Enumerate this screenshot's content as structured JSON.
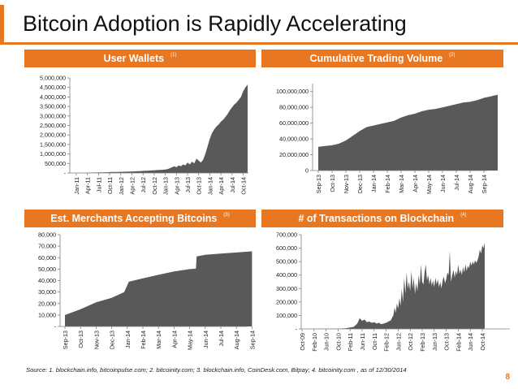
{
  "slide": {
    "title": "Bitcoin Adoption is Rapidly Accelerating",
    "source": "Source:  1. blockchain.info, bitcoinpulse.com;  2. bitcoinity.com;  3. blockchain.info, CoinDesk.com, Bitpay;  4. bitcoinity.com , as of 12/30/2014",
    "page_number": "8",
    "accent_color": "#e87722",
    "fill_color": "#595959"
  },
  "chart_data": [
    {
      "id": "wallets",
      "type": "area",
      "title": "User Wallets",
      "footnote": "(1)",
      "x": [
        "Jan-11",
        "Apr-11",
        "Jul-11",
        "Oct-11",
        "Jan-12",
        "Apr-12",
        "Jul-12",
        "Oct-12",
        "Jan-13",
        "Apr-13",
        "Jul-13",
        "Oct-13",
        "Jan-14",
        "Apr-14",
        "Jul-14",
        "Oct-14"
      ],
      "y": [
        10000,
        20000,
        30000,
        40000,
        50000,
        60000,
        70000,
        80000,
        150000,
        300000,
        450000,
        750000,
        2000000,
        2700000,
        3500000,
        4500000
      ],
      "profile": [
        [
          0,
          0
        ],
        [
          0.3,
          5000
        ],
        [
          0.6,
          10000
        ],
        [
          0.9,
          12000
        ],
        [
          1.2,
          15000
        ],
        [
          1.5,
          20000
        ],
        [
          1.8,
          25000
        ],
        [
          2.1,
          30000
        ],
        [
          2.4,
          35000
        ],
        [
          2.7,
          40000
        ],
        [
          3.0,
          45000
        ],
        [
          3.3,
          50000
        ],
        [
          3.6,
          55000
        ],
        [
          3.9,
          60000
        ],
        [
          4.2,
          65000
        ],
        [
          4.5,
          70000
        ],
        [
          4.8,
          75000
        ],
        [
          5.1,
          80000
        ],
        [
          5.4,
          90000
        ],
        [
          5.7,
          100000
        ],
        [
          6.0,
          110000
        ],
        [
          6.3,
          120000
        ],
        [
          6.6,
          130000
        ],
        [
          6.9,
          140000
        ],
        [
          7.2,
          150000
        ],
        [
          7.5,
          160000
        ],
        [
          7.8,
          170000
        ],
        [
          8.0,
          180000
        ],
        [
          8.2,
          200000
        ],
        [
          8.4,
          250000
        ],
        [
          8.6,
          300000
        ],
        [
          8.8,
          350000
        ],
        [
          9.0,
          300000
        ],
        [
          9.2,
          400000
        ],
        [
          9.4,
          350000
        ],
        [
          9.6,
          450000
        ],
        [
          9.8,
          400000
        ],
        [
          10.0,
          550000
        ],
        [
          10.2,
          450000
        ],
        [
          10.4,
          600000
        ],
        [
          10.6,
          500000
        ],
        [
          10.8,
          750000
        ],
        [
          11.0,
          650000
        ],
        [
          11.2,
          550000
        ],
        [
          11.4,
          700000
        ],
        [
          11.6,
          1000000
        ],
        [
          11.8,
          1400000
        ],
        [
          12.0,
          1800000
        ],
        [
          12.2,
          2100000
        ],
        [
          12.4,
          2300000
        ],
        [
          12.6,
          2450000
        ],
        [
          12.8,
          2550000
        ],
        [
          13.0,
          2700000
        ],
        [
          13.2,
          2800000
        ],
        [
          13.4,
          2950000
        ],
        [
          13.6,
          3100000
        ],
        [
          13.8,
          3300000
        ],
        [
          14.0,
          3450000
        ],
        [
          14.2,
          3600000
        ],
        [
          14.4,
          3700000
        ],
        [
          14.6,
          3850000
        ],
        [
          14.8,
          4000000
        ],
        [
          15.0,
          4300000
        ],
        [
          15.2,
          4500000
        ],
        [
          15.4,
          4650000
        ]
      ],
      "yticks": [
        "-",
        "500,000",
        "1,000,000",
        "1,500,000",
        "2,000,000",
        "2,500,000",
        "3,000,000",
        "3,500,000",
        "4,000,000",
        "4,500,000",
        "5,000,000"
      ],
      "ylim": [
        0,
        5000000
      ]
    },
    {
      "id": "volume",
      "type": "area",
      "title": "Cumulative Trading Volume",
      "footnote": "(2)",
      "x": [
        "Sep-13",
        "Oct-13",
        "Nov-13",
        "Dec-13",
        "Jan-14",
        "Feb-14",
        "Mar-14",
        "Apr-14",
        "May-14",
        "Jun-14",
        "Jul-14",
        "Aug-14",
        "Sep-14"
      ],
      "profile": [
        [
          0,
          30000000
        ],
        [
          0.5,
          31000000
        ],
        [
          1,
          32000000
        ],
        [
          1.5,
          34000000
        ],
        [
          2,
          38000000
        ],
        [
          2.5,
          44000000
        ],
        [
          3,
          50000000
        ],
        [
          3.5,
          55000000
        ],
        [
          4,
          57000000
        ],
        [
          4.5,
          59000000
        ],
        [
          5,
          61000000
        ],
        [
          5.5,
          63000000
        ],
        [
          6,
          67000000
        ],
        [
          6.5,
          70000000
        ],
        [
          7,
          72000000
        ],
        [
          7.5,
          75000000
        ],
        [
          8,
          77000000
        ],
        [
          8.5,
          78000000
        ],
        [
          9,
          80000000
        ],
        [
          9.5,
          82000000
        ],
        [
          10,
          84000000
        ],
        [
          10.5,
          86000000
        ],
        [
          11,
          87000000
        ],
        [
          11.5,
          89000000
        ],
        [
          12,
          92000000
        ],
        [
          12.5,
          94000000
        ],
        [
          13,
          96000000
        ]
      ],
      "yticks": [
        "0",
        "20,000,000",
        "40,000,000",
        "60,000,000",
        "80,000,000",
        "100,000,000"
      ],
      "ylim": [
        0,
        110000000
      ]
    },
    {
      "id": "merchants",
      "type": "area",
      "title": "Est. Merchants Accepting Bitcoins",
      "footnote": "(3)",
      "x": [
        "Sep-13",
        "Oct-13",
        "Nov-13",
        "Dec-13",
        "Jan-14",
        "Feb-14",
        "Mar-14",
        "Apr-14",
        "May-14",
        "Jun-14",
        "Jul-14",
        "Aug-14",
        "Sep-14"
      ],
      "profile": [
        [
          0,
          10000
        ],
        [
          1,
          15000
        ],
        [
          2,
          21000
        ],
        [
          3,
          25000
        ],
        [
          3.8,
          30000
        ],
        [
          4.1,
          39000
        ],
        [
          5,
          42000
        ],
        [
          6,
          45000
        ],
        [
          7,
          48000
        ],
        [
          8,
          50000
        ],
        [
          8.4,
          50500
        ],
        [
          8.45,
          61000
        ],
        [
          9,
          62500
        ],
        [
          10,
          63500
        ],
        [
          11,
          64500
        ],
        [
          12,
          65500
        ]
      ],
      "yticks": [
        "-",
        "10,000",
        "20,000",
        "30,000",
        "40,000",
        "50,000",
        "60,000",
        "70,000",
        "80,000"
      ],
      "ylim": [
        0,
        80000
      ]
    },
    {
      "id": "transactions",
      "type": "area",
      "title": "# of Transactions on Blockchain",
      "footnote": "(4)",
      "x": [
        "Oct-09",
        "Feb-10",
        "Jun-10",
        "Oct-10",
        "Feb-11",
        "Jun-11",
        "Oct-11",
        "Feb-12",
        "Jun-12",
        "Oct-12",
        "Feb-13",
        "Jun-13",
        "Oct-13",
        "Feb-14",
        "Jun-14",
        "Oct-14"
      ],
      "profile": [
        [
          0,
          0
        ],
        [
          1,
          500
        ],
        [
          2,
          1000
        ],
        [
          3,
          2000
        ],
        [
          3.6,
          5000
        ],
        [
          4,
          10000
        ],
        [
          4.3,
          15000
        ],
        [
          4.6,
          40000
        ],
        [
          4.8,
          80000
        ],
        [
          5,
          60000
        ],
        [
          5.2,
          70000
        ],
        [
          5.4,
          50000
        ],
        [
          5.6,
          55000
        ],
        [
          5.8,
          45000
        ],
        [
          6,
          50000
        ],
        [
          6.2,
          40000
        ],
        [
          6.4,
          45000
        ],
        [
          6.6,
          35000
        ],
        [
          6.8,
          40000
        ],
        [
          7,
          45000
        ],
        [
          7.2,
          55000
        ],
        [
          7.4,
          65000
        ],
        [
          7.5,
          85000
        ],
        [
          7.6,
          100000
        ],
        [
          7.7,
          160000
        ],
        [
          7.8,
          120000
        ],
        [
          7.9,
          190000
        ],
        [
          8,
          150000
        ],
        [
          8.1,
          230000
        ],
        [
          8.2,
          170000
        ],
        [
          8.3,
          300000
        ],
        [
          8.4,
          200000
        ],
        [
          8.5,
          380000
        ],
        [
          8.6,
          260000
        ],
        [
          8.7,
          420000
        ],
        [
          8.8,
          300000
        ],
        [
          8.9,
          350000
        ],
        [
          9,
          280000
        ],
        [
          9.1,
          430000
        ],
        [
          9.2,
          300000
        ],
        [
          9.3,
          380000
        ],
        [
          9.4,
          260000
        ],
        [
          9.5,
          340000
        ],
        [
          9.6,
          280000
        ],
        [
          9.7,
          400000
        ],
        [
          9.8,
          330000
        ],
        [
          9.9,
          480000
        ],
        [
          10,
          350000
        ],
        [
          10.1,
          330000
        ],
        [
          10.2,
          420000
        ],
        [
          10.3,
          480000
        ],
        [
          10.4,
          360000
        ],
        [
          10.5,
          400000
        ],
        [
          10.6,
          330000
        ],
        [
          10.7,
          380000
        ],
        [
          10.8,
          320000
        ],
        [
          10.9,
          360000
        ],
        [
          11,
          310000
        ],
        [
          11.1,
          380000
        ],
        [
          11.2,
          330000
        ],
        [
          11.3,
          370000
        ],
        [
          11.4,
          310000
        ],
        [
          11.5,
          350000
        ],
        [
          11.6,
          300000
        ],
        [
          11.7,
          360000
        ],
        [
          11.8,
          390000
        ],
        [
          11.9,
          340000
        ],
        [
          12,
          370000
        ],
        [
          12.1,
          420000
        ],
        [
          12.2,
          400000
        ],
        [
          12.3,
          580000
        ],
        [
          12.4,
          350000
        ],
        [
          12.5,
          400000
        ],
        [
          12.6,
          440000
        ],
        [
          12.7,
          380000
        ],
        [
          12.8,
          430000
        ],
        [
          12.9,
          400000
        ],
        [
          13,
          480000
        ],
        [
          13.1,
          410000
        ],
        [
          13.2,
          440000
        ],
        [
          13.3,
          400000
        ],
        [
          13.4,
          460000
        ],
        [
          13.5,
          420000
        ],
        [
          13.6,
          480000
        ],
        [
          13.7,
          430000
        ],
        [
          13.8,
          470000
        ],
        [
          13.9,
          450000
        ],
        [
          14,
          500000
        ],
        [
          14.1,
          470000
        ],
        [
          14.2,
          500000
        ],
        [
          14.3,
          480000
        ],
        [
          14.4,
          510000
        ],
        [
          14.5,
          490000
        ],
        [
          14.6,
          510000
        ],
        [
          14.7,
          540000
        ],
        [
          14.8,
          590000
        ],
        [
          14.9,
          560000
        ],
        [
          15,
          620000
        ],
        [
          15.1,
          600000
        ],
        [
          15.2,
          640000
        ]
      ],
      "yticks": [
        "-",
        "100,000",
        "200,000",
        "300,000",
        "400,000",
        "500,000",
        "600,000",
        "700,000"
      ],
      "ylim": [
        0,
        700000
      ]
    }
  ]
}
